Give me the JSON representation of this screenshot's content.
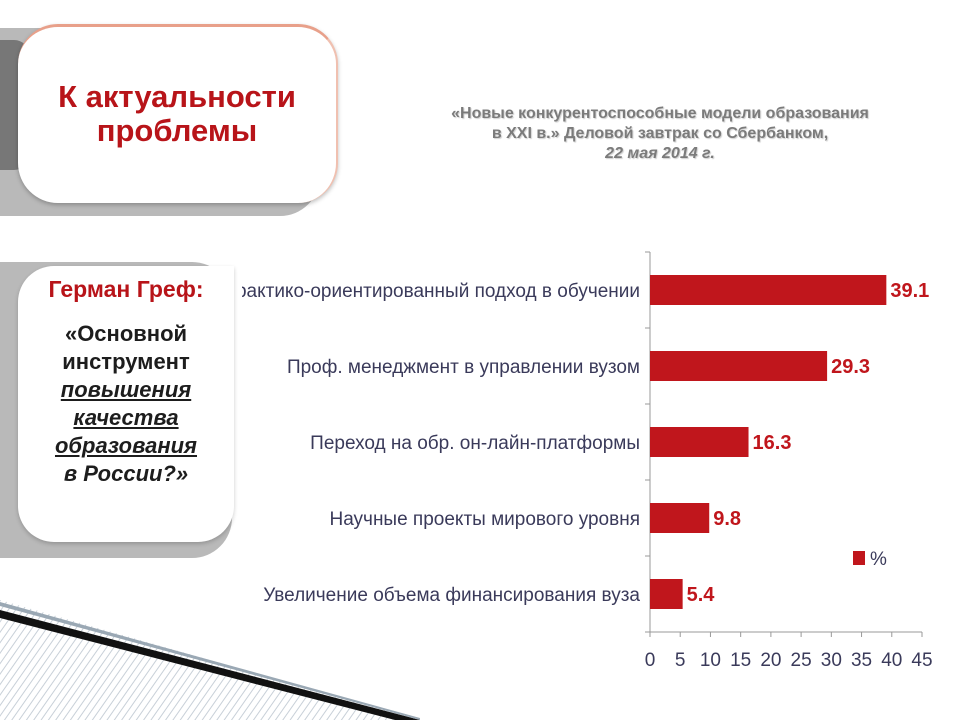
{
  "title": "К актуальности проблемы",
  "subtitle": {
    "line1": "«Новые конкурентоспособные модели образования",
    "line2": "в XXI в.» Деловой завтрак со Сбербанком,",
    "line3": "22 мая 2014 г."
  },
  "quote": {
    "author": "Герман Греф:",
    "line1": "«Основной",
    "line2": "инструмент",
    "line3": "повышения",
    "line4": "качества",
    "line5": "образования",
    "line6": "в России?»"
  },
  "colors": {
    "accent": "#b81419",
    "bar": "#c0161c",
    "shadow": "#b9b9b9"
  },
  "chart_data": {
    "type": "bar",
    "orientation": "horizontal",
    "categories": [
      "Практико-ориентированный подход в обучении",
      "Проф. менеджмент в управлении вузом",
      "Переход на обр. он-лайн-платформы",
      "Научные проекты мирового уровня",
      "Увеличение объема финансирования вуза"
    ],
    "series": [
      {
        "name": "%",
        "values": [
          39.1,
          29.3,
          16.3,
          9.8,
          5.4
        ]
      }
    ],
    "xlim": [
      0,
      45
    ],
    "xticks": [
      0,
      5,
      10,
      15,
      20,
      25,
      30,
      35,
      40,
      45
    ],
    "legend": "right",
    "grid": false
  }
}
